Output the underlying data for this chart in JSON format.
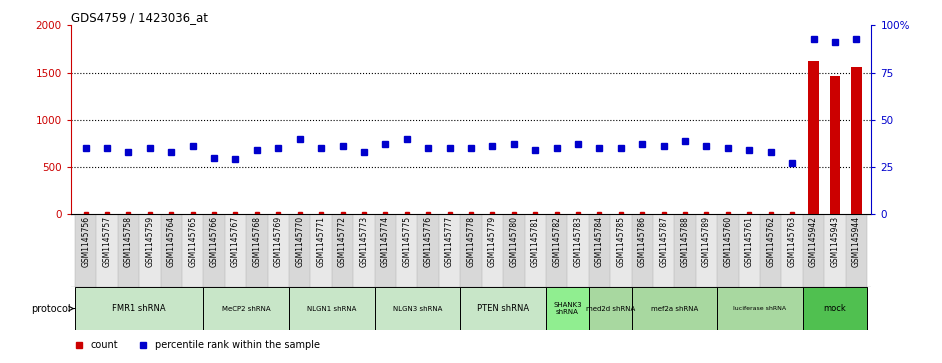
{
  "title": "GDS4759 / 1423036_at",
  "samples": [
    "GSM1145756",
    "GSM1145757",
    "GSM1145758",
    "GSM1145759",
    "GSM1145764",
    "GSM1145765",
    "GSM1145766",
    "GSM1145767",
    "GSM1145768",
    "GSM1145769",
    "GSM1145770",
    "GSM1145771",
    "GSM1145772",
    "GSM1145773",
    "GSM1145774",
    "GSM1145775",
    "GSM1145776",
    "GSM1145777",
    "GSM1145778",
    "GSM1145779",
    "GSM1145780",
    "GSM1145781",
    "GSM1145782",
    "GSM1145783",
    "GSM1145784",
    "GSM1145785",
    "GSM1145786",
    "GSM1145787",
    "GSM1145788",
    "GSM1145789",
    "GSM1145760",
    "GSM1145761",
    "GSM1145762",
    "GSM1145763",
    "GSM1145942",
    "GSM1145943",
    "GSM1145944"
  ],
  "count_values": [
    3,
    3,
    3,
    3,
    3,
    3,
    3,
    3,
    3,
    3,
    3,
    3,
    3,
    3,
    3,
    3,
    3,
    3,
    3,
    3,
    3,
    3,
    3,
    3,
    3,
    3,
    3,
    3,
    3,
    3,
    3,
    3,
    3,
    8,
    1620,
    1460,
    1560
  ],
  "percentile_values": [
    35,
    35,
    33,
    35,
    33,
    36,
    30,
    29,
    34,
    35,
    40,
    35,
    36,
    33,
    37,
    40,
    35,
    35,
    35,
    36,
    37,
    34,
    35,
    37,
    35,
    35,
    37,
    36,
    39,
    36,
    35,
    34,
    33,
    27,
    93,
    91,
    93
  ],
  "protocols": [
    {
      "label": "FMR1 shRNA",
      "start": 0,
      "end": 6,
      "color": "#c8e6c8"
    },
    {
      "label": "MeCP2 shRNA",
      "start": 6,
      "end": 10,
      "color": "#c8e6c8"
    },
    {
      "label": "NLGN1 shRNA",
      "start": 10,
      "end": 14,
      "color": "#c8e6c8"
    },
    {
      "label": "NLGN3 shRNA",
      "start": 14,
      "end": 18,
      "color": "#c8e6c8"
    },
    {
      "label": "PTEN shRNA",
      "start": 18,
      "end": 22,
      "color": "#c8e6c8"
    },
    {
      "label": "SHANK3\nshRNA",
      "start": 22,
      "end": 24,
      "color": "#90ee90"
    },
    {
      "label": "med2d shRNA",
      "start": 24,
      "end": 26,
      "color": "#a8d8a0"
    },
    {
      "label": "mef2a shRNA",
      "start": 26,
      "end": 30,
      "color": "#a8d8a0"
    },
    {
      "label": "luciferase shRNA",
      "start": 30,
      "end": 34,
      "color": "#a8d8a0"
    },
    {
      "label": "mock",
      "start": 34,
      "end": 37,
      "color": "#50c050"
    }
  ],
  "ylim_left": [
    0,
    2000
  ],
  "ylim_right": [
    0,
    100
  ],
  "left_yticks": [
    0,
    500,
    1000,
    1500,
    2000
  ],
  "right_yticks": [
    0,
    25,
    50,
    75,
    100
  ],
  "right_yticklabels": [
    "0",
    "25",
    "50",
    "75",
    "100%"
  ],
  "bar_color": "#cc0000",
  "dot_color": "#0000cc",
  "left_tick_color": "#cc0000",
  "right_tick_color": "#0000cc"
}
